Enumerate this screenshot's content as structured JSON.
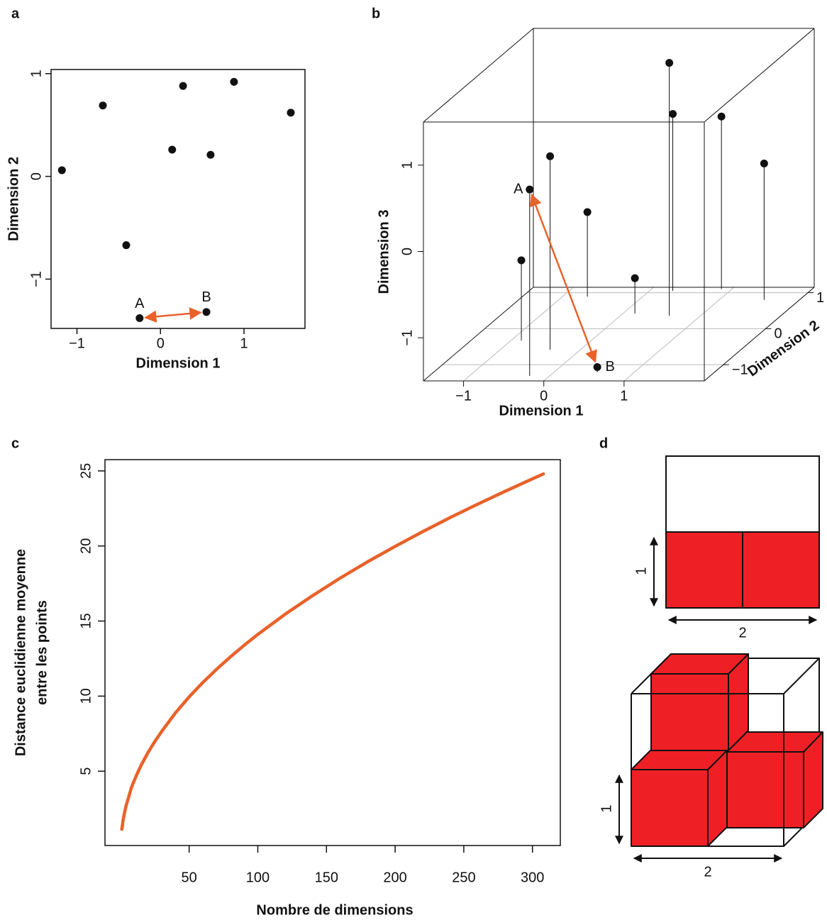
{
  "chart_data": [
    {
      "type": "scatter",
      "panel_label": "a",
      "xlabel": "Dimension 1",
      "ylabel": "Dimension 2",
      "x": [
        -1.18,
        -0.69,
        0.27,
        0.88,
        1.56,
        0.14,
        0.6,
        -0.41
      ],
      "values": [
        0.06,
        0.69,
        0.88,
        0.92,
        0.62,
        0.26,
        0.21,
        -0.67
      ],
      "annotations": [
        {
          "text": "A",
          "x": -0.25,
          "y": -1.38
        },
        {
          "text": "B",
          "x": 0.55,
          "y": -1.32
        }
      ],
      "color": "#111111",
      "arrow_color": "#e8622a",
      "xlim": [
        -1.31,
        1.73
      ],
      "ylim": [
        -1.48,
        1.04
      ],
      "xticks": [
        {
          "value": -1,
          "label": "−1"
        },
        0,
        1
      ],
      "yticks": [
        {
          "value": -1,
          "label": "−1"
        },
        0,
        1
      ]
    },
    {
      "type": "scatter3d",
      "panel_label": "b",
      "xlabel": "Dimension 1",
      "ylabel": "Dimension 2",
      "zlabel": "Dimension 3",
      "x": [
        -0.87,
        -0.38,
        -0.69,
        0.15,
        0.61,
        0.29,
        0.87,
        1.56
      ],
      "y": [
        -0.33,
        -0.58,
        0.89,
        0.42,
        0.36,
        1.05,
        1.1,
        0.8
      ],
      "z": [
        -0.57,
        0.74,
        -0.52,
        -1.09,
        1.43,
        0.55,
        0.5,
        0.08
      ],
      "annotations": [
        {
          "text": "A",
          "x": -0.25,
          "y": -1.31,
          "z": 0.66
        },
        {
          "text": "B",
          "x": 0.54,
          "y": -1.21,
          "z": -1.44
        }
      ],
      "color": "#111111",
      "arrow_color": "#e8622a",
      "grid": true,
      "xlim": [
        -1.5,
        2
      ],
      "ylim": [
        -1.45,
        1.15
      ],
      "zlim": [
        -1.5,
        1.5
      ],
      "xticks": [
        {
          "value": -1,
          "label": "−1"
        },
        0,
        1
      ],
      "yticks": [
        {
          "value": -1,
          "label": "−1"
        },
        0,
        1
      ],
      "zticks": [
        {
          "value": -1,
          "label": "−1"
        },
        0,
        1
      ]
    },
    {
      "type": "line",
      "panel_label": "c",
      "xlabel": "Nombre de dimensions",
      "ylabel": [
        "Distance euclidienne moyenne",
        "entre les points"
      ],
      "x": [
        1,
        2,
        3,
        4,
        5,
        6,
        8,
        10,
        12,
        15,
        20,
        25,
        30,
        40,
        50,
        60,
        70,
        80,
        90,
        100,
        120,
        140,
        160,
        180,
        200,
        220,
        240,
        260,
        280,
        300,
        308
      ],
      "values": [
        1.13,
        1.77,
        2.26,
        2.66,
        2.99,
        3.29,
        3.93,
        4.37,
        4.8,
        5.39,
        6.24,
        6.98,
        7.65,
        8.88,
        9.95,
        10.91,
        11.79,
        12.61,
        13.38,
        14.11,
        15.46,
        16.7,
        17.86,
        18.95,
        19.97,
        20.95,
        21.89,
        22.78,
        23.64,
        24.47,
        24.8
      ],
      "color": "#e8622a",
      "xlim": [
        -11.3,
        320.3
      ],
      "ylim": [
        0.05,
        25.75
      ],
      "xticks": [
        50,
        100,
        150,
        200,
        250,
        300
      ],
      "yticks": [
        5,
        10,
        15,
        20,
        25
      ]
    }
  ],
  "diagram": {
    "panel_label": "d",
    "square": {
      "height_label": "1",
      "width_label": "2"
    },
    "cube": {
      "height_label": "1",
      "width_label": "2"
    }
  }
}
